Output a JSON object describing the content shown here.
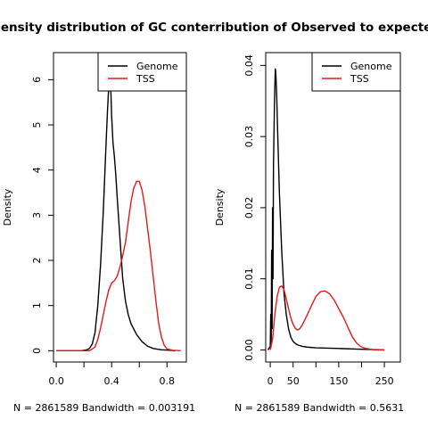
{
  "chart_data": [
    {
      "type": "line",
      "title": "Density distribution of GC content",
      "xlabel": "N = 2861589   Bandwidth = 0.003191",
      "ylabel": "Density",
      "xlim": [
        -0.02,
        0.94
      ],
      "ylim": [
        -0.25,
        6.6
      ],
      "xticks": [
        0.0,
        0.2,
        0.4,
        0.6,
        0.8
      ],
      "xtick_labels": [
        "0.0",
        "",
        "0.4",
        "",
        "0.8"
      ],
      "yticks": [
        0,
        1,
        2,
        3,
        4,
        5,
        6
      ],
      "ytick_labels": [
        "0",
        "1",
        "2",
        "3",
        "4",
        "5",
        "6"
      ],
      "legend": {
        "position": "top-right",
        "entries": [
          "Genome",
          "TSS"
        ]
      },
      "series": [
        {
          "name": "Genome",
          "color": "#000000",
          "x": [
            0.0,
            0.18,
            0.22,
            0.24,
            0.26,
            0.28,
            0.3,
            0.32,
            0.34,
            0.36,
            0.37,
            0.38,
            0.385,
            0.39,
            0.395,
            0.4,
            0.41,
            0.42,
            0.43,
            0.44,
            0.46,
            0.48,
            0.5,
            0.52,
            0.54,
            0.56,
            0.58,
            0.6,
            0.62,
            0.66,
            0.7,
            0.76,
            0.82,
            0.86
          ],
          "y": [
            0.0,
            0.0,
            0.02,
            0.05,
            0.15,
            0.4,
            1.0,
            1.9,
            3.1,
            4.6,
            5.3,
            5.9,
            6.1,
            6.0,
            5.7,
            5.2,
            4.6,
            4.3,
            3.9,
            3.4,
            2.5,
            1.6,
            1.1,
            0.8,
            0.6,
            0.48,
            0.36,
            0.28,
            0.2,
            0.1,
            0.05,
            0.02,
            0.01,
            0.0
          ]
        },
        {
          "name": "TSS",
          "color": "#e41a1c",
          "x": [
            0.0,
            0.24,
            0.28,
            0.3,
            0.32,
            0.34,
            0.36,
            0.38,
            0.4,
            0.42,
            0.44,
            0.46,
            0.48,
            0.5,
            0.52,
            0.54,
            0.56,
            0.58,
            0.6,
            0.62,
            0.64,
            0.66,
            0.68,
            0.7,
            0.72,
            0.74,
            0.76,
            0.78,
            0.8,
            0.84,
            0.9
          ],
          "y": [
            0.0,
            0.0,
            0.08,
            0.25,
            0.5,
            0.8,
            1.1,
            1.35,
            1.5,
            1.55,
            1.65,
            1.85,
            2.1,
            2.4,
            2.85,
            3.3,
            3.6,
            3.75,
            3.75,
            3.55,
            3.2,
            2.7,
            2.2,
            1.65,
            1.1,
            0.6,
            0.3,
            0.12,
            0.04,
            0.01,
            0.0
          ]
        }
      ]
    },
    {
      "type": "line",
      "title": "Density distribution of Observed to expected CpG ratio",
      "xlabel": "N = 2861589   Bandwidth = 0.5631",
      "ylabel": "Density",
      "xlim": [
        -10,
        285
      ],
      "ylim": [
        -0.0017,
        0.0418
      ],
      "xticks": [
        0,
        50,
        100,
        150,
        200,
        250
      ],
      "xtick_labels": [
        "0",
        "50",
        "",
        "150",
        "",
        "250"
      ],
      "yticks": [
        0.0,
        0.01,
        0.02,
        0.03,
        0.04
      ],
      "ytick_labels": [
        "0.00",
        "0.01",
        "0.02",
        "0.03",
        "0.04"
      ],
      "legend": {
        "position": "top-right",
        "entries": [
          "Genome",
          "TSS"
        ]
      },
      "series": [
        {
          "name": "Genome",
          "color": "#000000",
          "x": [
            -5,
            0,
            1,
            2,
            3,
            4,
            5,
            6,
            7,
            8,
            9,
            10,
            11,
            12,
            14,
            16,
            20,
            25,
            30,
            35,
            40,
            45,
            50,
            55,
            60,
            70,
            80,
            100,
            150,
            200,
            250
          ],
          "y": [
            0.0,
            0.0005,
            0.005,
            0.001,
            0.014,
            0.003,
            0.02,
            0.01,
            0.026,
            0.03,
            0.034,
            0.037,
            0.0395,
            0.039,
            0.036,
            0.031,
            0.022,
            0.014,
            0.008,
            0.005,
            0.003,
            0.0018,
            0.0012,
            0.0009,
            0.0007,
            0.0005,
            0.0004,
            0.0003,
            0.0002,
            0.0001,
            0.0
          ]
        },
        {
          "name": "TSS",
          "color": "#e41a1c",
          "x": [
            0,
            5,
            10,
            15,
            20,
            25,
            30,
            35,
            40,
            45,
            50,
            55,
            60,
            65,
            70,
            80,
            90,
            100,
            110,
            120,
            130,
            140,
            150,
            160,
            170,
            180,
            190,
            200,
            210,
            230,
            250
          ],
          "y": [
            0.0,
            0.0015,
            0.005,
            0.0075,
            0.0088,
            0.009,
            0.0085,
            0.0072,
            0.0058,
            0.0045,
            0.0036,
            0.003,
            0.0028,
            0.003,
            0.0035,
            0.0048,
            0.0062,
            0.0075,
            0.0082,
            0.0083,
            0.0079,
            0.007,
            0.0058,
            0.0046,
            0.0032,
            0.0018,
            0.0009,
            0.0004,
            0.0002,
            0.0,
            0.0
          ]
        }
      ]
    }
  ]
}
